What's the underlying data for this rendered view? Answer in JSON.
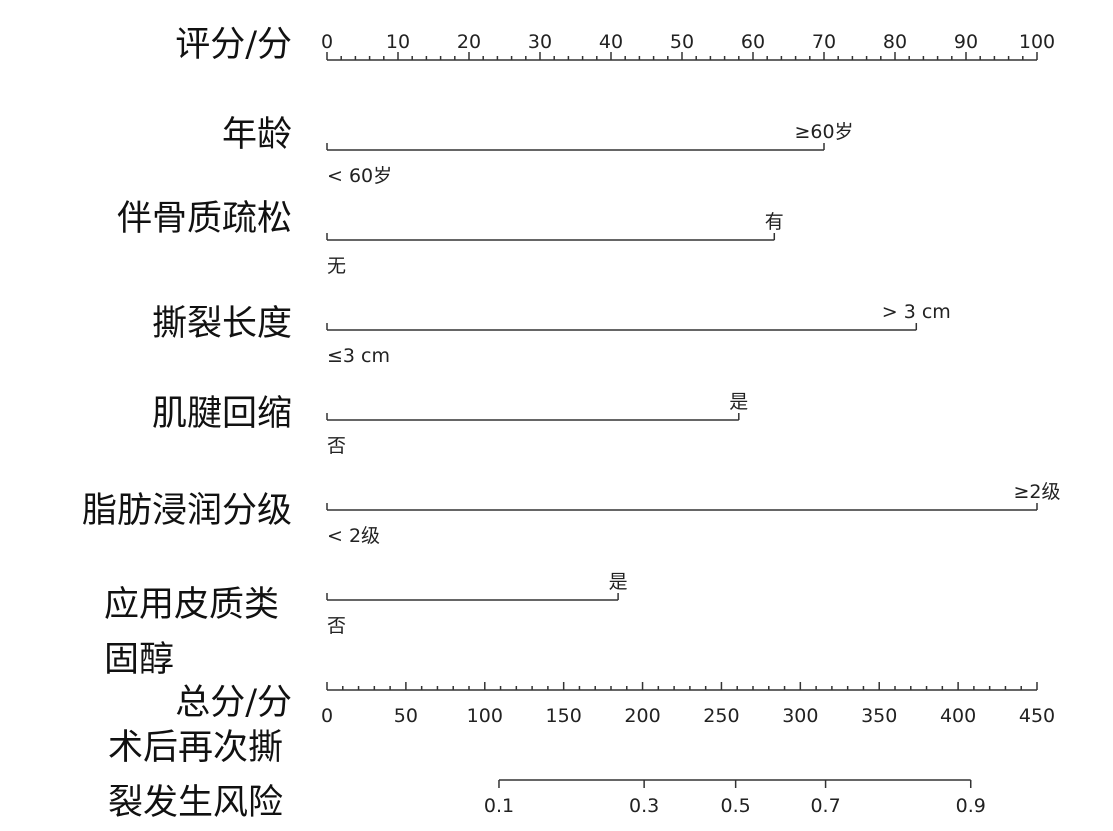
{
  "chart_data": {
    "type": "nomogram",
    "points_axis": {
      "label": "评分/分",
      "xlim": [
        0,
        100
      ],
      "xticks": [
        0,
        10,
        20,
        30,
        40,
        50,
        60,
        70,
        80,
        90,
        100
      ],
      "minor_ticks": [
        2,
        4,
        6,
        8,
        12,
        14,
        16,
        18,
        22,
        24,
        26,
        28,
        32,
        34,
        36,
        38,
        42,
        44,
        46,
        48,
        52,
        54,
        56,
        58,
        62,
        64,
        66,
        68,
        72,
        74,
        76,
        78,
        82,
        84,
        86,
        88,
        92,
        94,
        96,
        98
      ]
    },
    "variables": [
      {
        "name": "年龄",
        "levels": [
          "< 60岁",
          "≥60岁"
        ],
        "values": [
          0,
          70
        ]
      },
      {
        "name": "伴骨质疏松",
        "levels": [
          "无",
          "有"
        ],
        "values": [
          0,
          63
        ]
      },
      {
        "name": "撕裂长度",
        "levels": [
          "≤3 cm",
          "> 3 cm"
        ],
        "values": [
          0,
          83
        ]
      },
      {
        "name": "肌腱回缩",
        "levels": [
          "否",
          "是"
        ],
        "values": [
          0,
          58
        ]
      },
      {
        "name": "脂肪浸润分级",
        "levels": [
          "< 2级",
          "≥2级"
        ],
        "values": [
          0,
          100
        ]
      },
      {
        "name": "应用皮质类固醇",
        "levels": [
          "否",
          "是"
        ],
        "values": [
          0,
          41
        ]
      }
    ],
    "total_axis": {
      "label": "总分/分",
      "xlim": [
        0,
        450
      ],
      "xticks": [
        0,
        50,
        100,
        150,
        200,
        250,
        300,
        350,
        400,
        450
      ],
      "minor_ticks": [
        10,
        20,
        30,
        40,
        60,
        70,
        80,
        90,
        110,
        120,
        130,
        140,
        160,
        170,
        180,
        190,
        210,
        220,
        230,
        240,
        260,
        270,
        280,
        290,
        310,
        320,
        330,
        340,
        360,
        370,
        380,
        390,
        410,
        420,
        430,
        440
      ]
    },
    "risk_axis": {
      "label": "术后再次撕裂发生风险",
      "risk": [
        0.1,
        0.3,
        0.5,
        0.7,
        0.9
      ],
      "total_points": [
        109,
        201,
        259,
        316,
        408
      ]
    }
  }
}
